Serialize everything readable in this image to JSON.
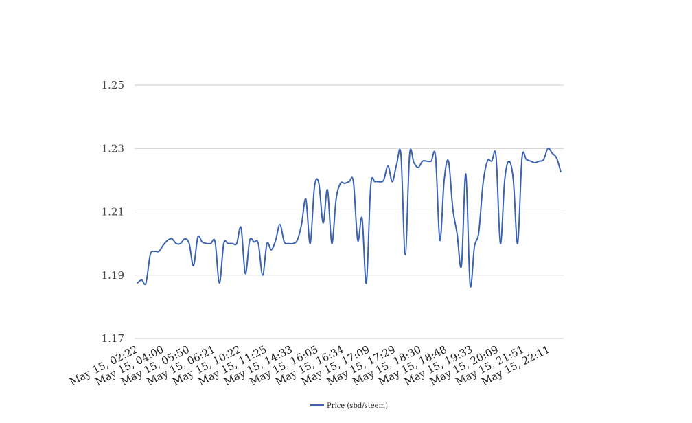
{
  "chart_data": {
    "type": "line",
    "title": "",
    "xlabel": "",
    "ylabel": "",
    "ylim": [
      1.17,
      1.25
    ],
    "y_ticks": [
      "1.17",
      "1.19",
      "1.21",
      "1.23",
      "1.25"
    ],
    "grid": true,
    "legend_position": "bottom",
    "x_tick_labels": [
      "May 15, 02:22",
      "May 15, 04:00",
      "May 15, 05:50",
      "May 15, 06:21",
      "May 15, 10:22",
      "May 15, 11:25",
      "May 15, 14:33",
      "May 15, 16:05",
      "May 15, 16:34",
      "May 15, 17:09",
      "May 15, 17:29",
      "May 15, 18:30",
      "May 15, 18:48",
      "May 15, 19:33",
      "May 15, 20:09",
      "May 15, 21:51",
      "May 15, 22:11"
    ],
    "series": [
      {
        "name": "Price (sbd/steem)",
        "color": "#3b62b0",
        "values": [
          1.1875,
          1.1885,
          1.1875,
          1.1965,
          1.1975,
          1.1975,
          1.1995,
          1.201,
          1.2015,
          1.2,
          1.2,
          1.2015,
          1.2,
          1.193,
          1.202,
          1.2005,
          1.2,
          1.2,
          1.2005,
          1.1875,
          1.2,
          1.2,
          1.2,
          1.2,
          1.205,
          1.1905,
          1.201,
          1.2005,
          1.2,
          1.19,
          1.2,
          1.198,
          1.201,
          1.206,
          1.2005,
          1.2,
          1.2,
          1.201,
          1.206,
          1.214,
          1.2,
          1.218,
          1.219,
          1.2065,
          1.217,
          1.2,
          1.214,
          1.219,
          1.219,
          1.2195,
          1.2195,
          1.201,
          1.208,
          1.1875,
          1.218,
          1.2195,
          1.2195,
          1.22,
          1.2245,
          1.2195,
          1.225,
          1.228,
          1.1965,
          1.228,
          1.2255,
          1.224,
          1.226,
          1.226,
          1.226,
          1.2275,
          1.201,
          1.22,
          1.226,
          1.211,
          1.203,
          1.193,
          1.222,
          1.187,
          1.199,
          1.2035,
          1.219,
          1.226,
          1.226,
          1.2275,
          1.2,
          1.22,
          1.226,
          1.22,
          1.2,
          1.227,
          1.2265,
          1.226,
          1.2255,
          1.226,
          1.2265,
          1.23,
          1.2285,
          1.227,
          1.2225
        ]
      }
    ]
  }
}
